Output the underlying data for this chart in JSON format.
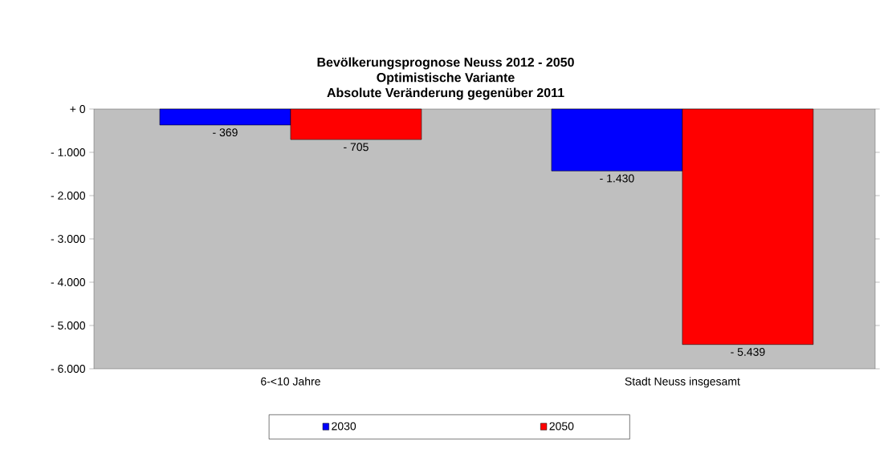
{
  "chart_data": {
    "type": "bar",
    "title": "Bevölkerungsprognose Neuss 2012 - 2050",
    "subtitle": "Optimistische Variante",
    "annotations": [
      "Absolute Veränderung gegenüber 2011"
    ],
    "categories": [
      "6-<10 Jahre",
      "Stadt Neuss insgesamt"
    ],
    "series": [
      {
        "name": "2030",
        "color": "#0000ff",
        "values": [
          -369,
          -1430
        ],
        "value_labels": [
          "- 369",
          "- 1.430"
        ]
      },
      {
        "name": "2050",
        "color": "#ff0000",
        "values": [
          -705,
          -5439
        ],
        "value_labels": [
          "- 705",
          "- 5.439"
        ]
      }
    ],
    "ylim": [
      -6000,
      0
    ],
    "yticks": [
      {
        "value": 0,
        "label": "+ 0"
      },
      {
        "value": -1000,
        "label": "- 1.000"
      },
      {
        "value": -2000,
        "label": "- 2.000"
      },
      {
        "value": -3000,
        "label": "- 3.000"
      },
      {
        "value": -4000,
        "label": "- 4.000"
      },
      {
        "value": -5000,
        "label": "- 5.000"
      },
      {
        "value": -6000,
        "label": "- 6.000"
      }
    ],
    "legend": "bottom",
    "grid": false
  }
}
